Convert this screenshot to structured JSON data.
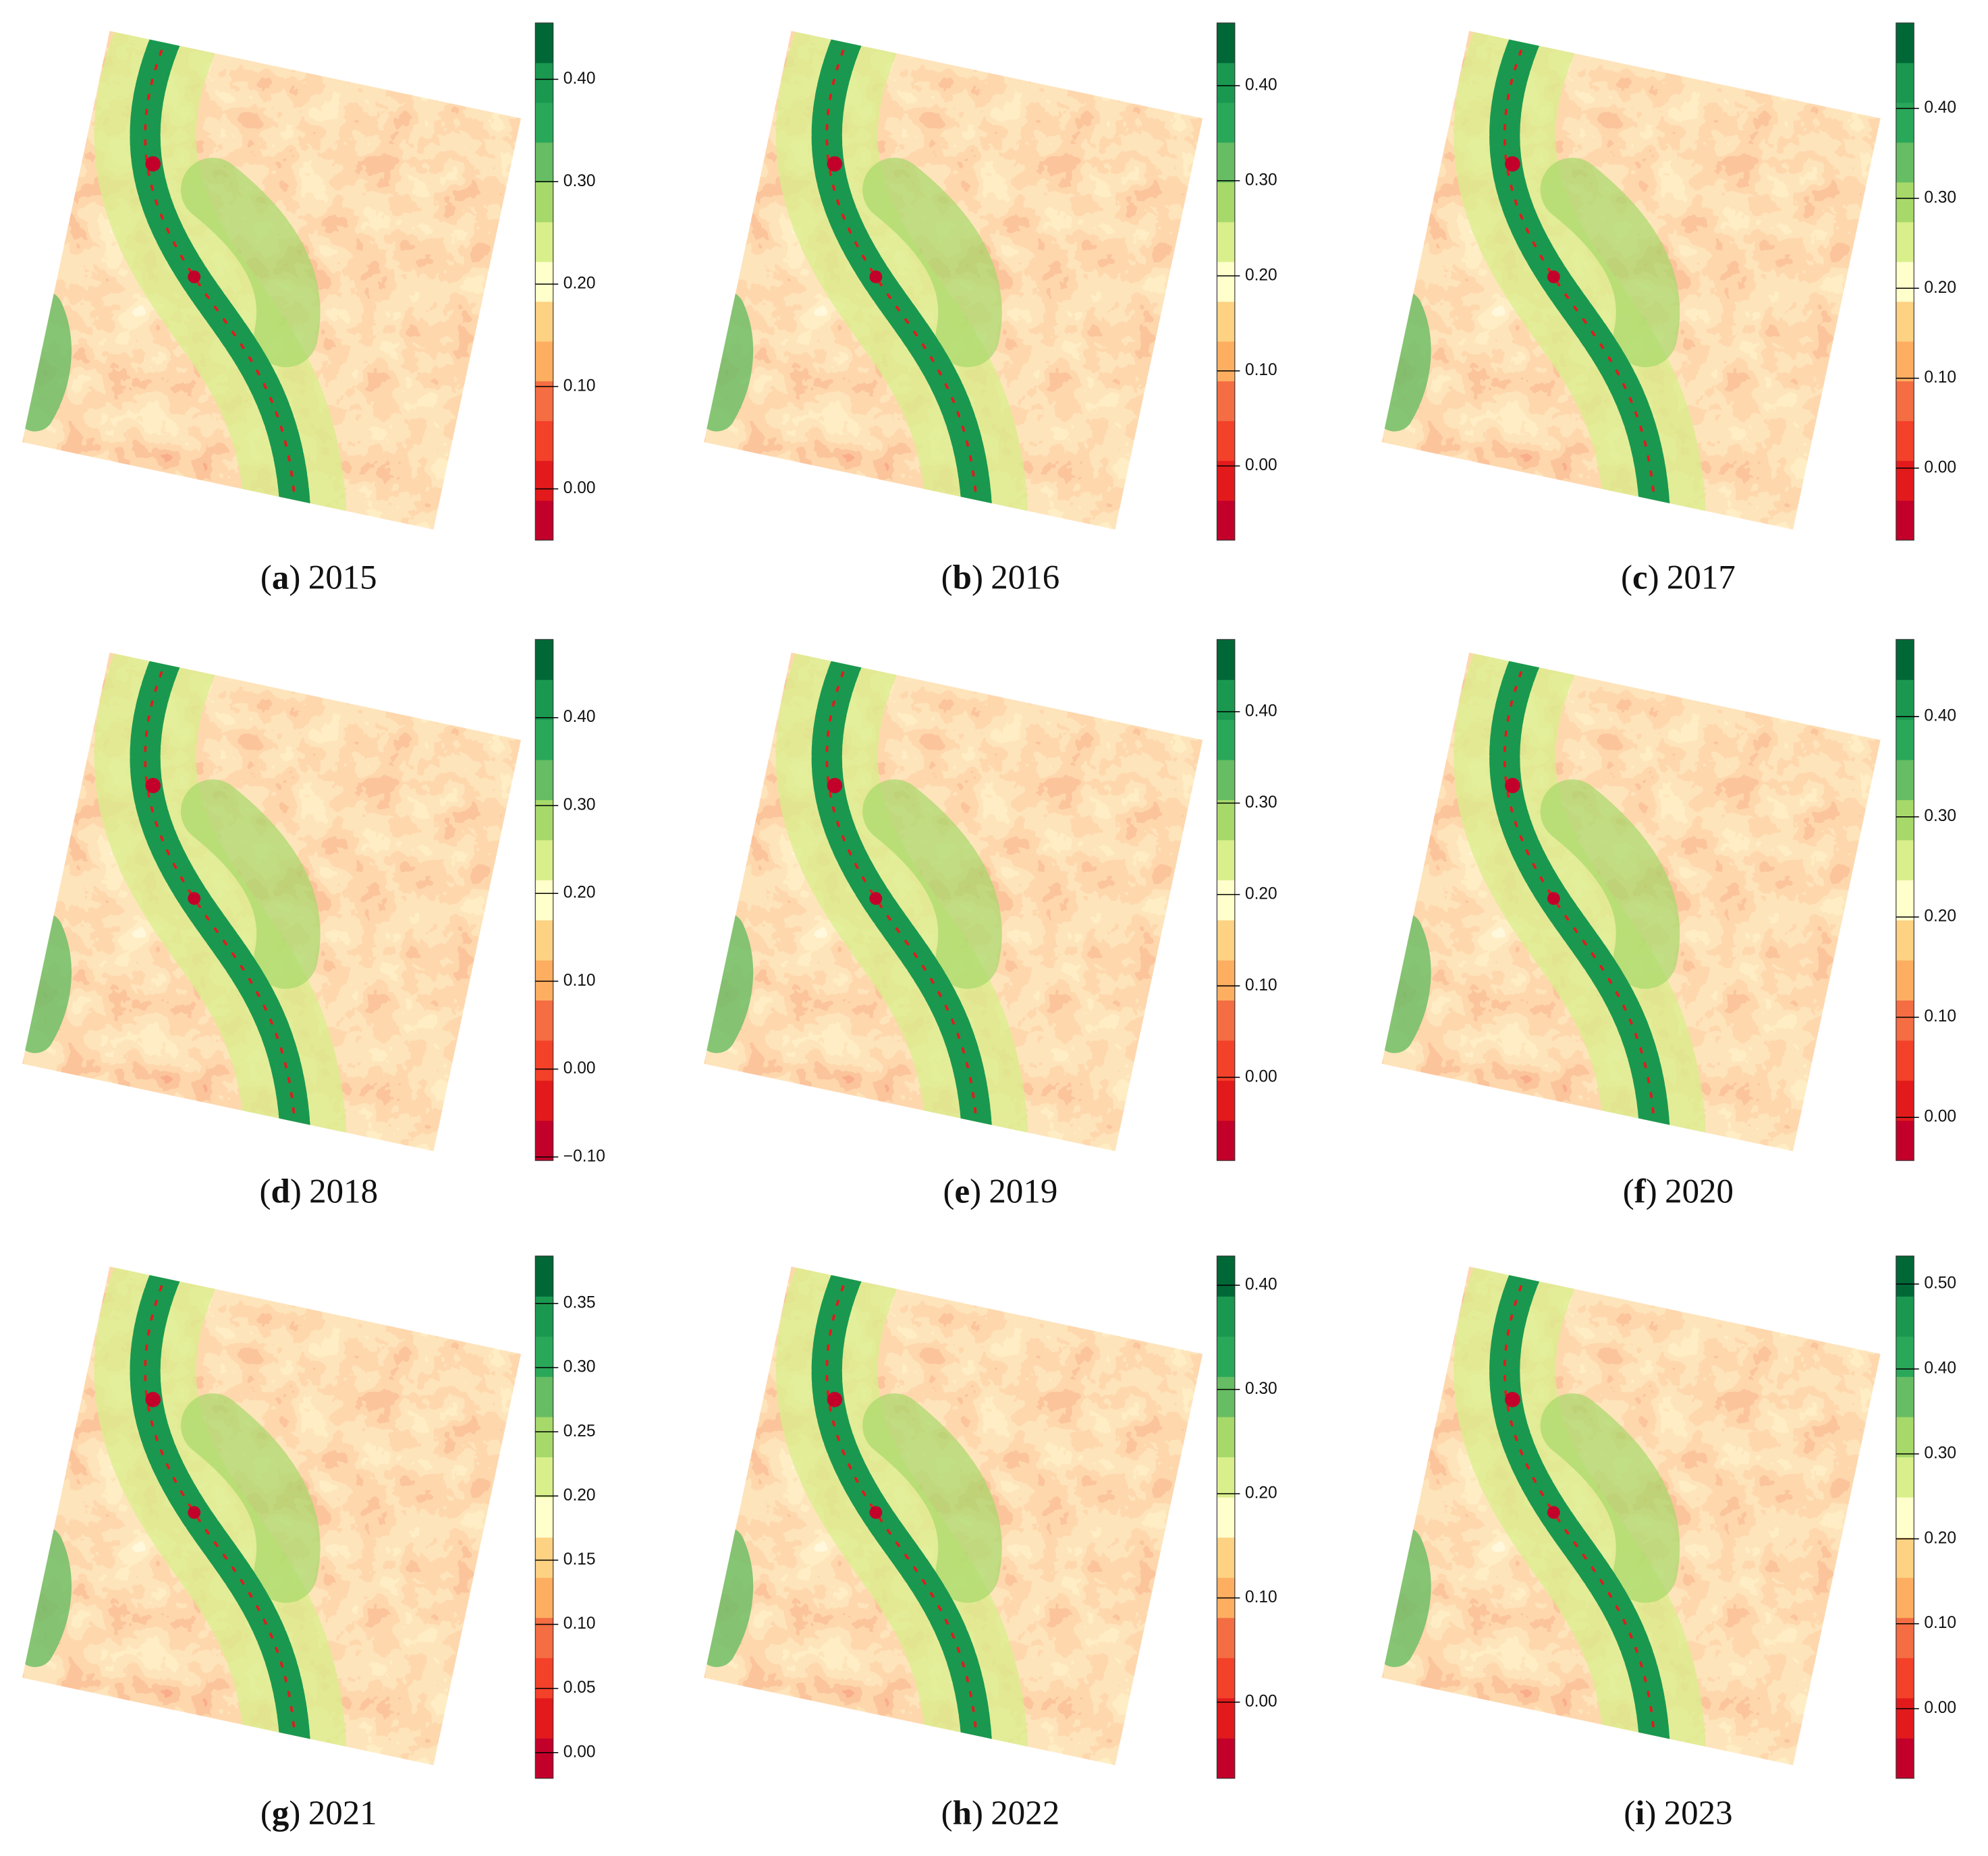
{
  "colormap": [
    "#c2002a",
    "#e31a1c",
    "#f4412a",
    "#f46d43",
    "#fdae61",
    "#fed283",
    "#ffffcc",
    "#d9ef8b",
    "#a6d96a",
    "#66bd63",
    "#2aa85a",
    "#1a9850",
    "#006837"
  ],
  "panels": [
    {
      "caption": {
        "open": "(",
        "letter": "a",
        "close": ")",
        "year": "2015"
      },
      "colorbar": {
        "lim": [
          -0.05,
          0.455
        ],
        "ticks": [
          {
            "value": 0,
            "label": "0.00"
          },
          {
            "value": 0.1,
            "label": "0.10"
          },
          {
            "value": 0.2,
            "label": "0.20"
          },
          {
            "value": 0.3,
            "label": "0.30"
          },
          {
            "value": 0.4,
            "label": "0.40"
          }
        ]
      }
    },
    {
      "caption": {
        "open": "(",
        "letter": "b",
        "close": ")",
        "year": "2016"
      },
      "colorbar": {
        "lim": [
          -0.078,
          0.466
        ],
        "ticks": [
          {
            "value": 0,
            "label": "0.00"
          },
          {
            "value": 0.1,
            "label": "0.10"
          },
          {
            "value": 0.2,
            "label": "0.20"
          },
          {
            "value": 0.3,
            "label": "0.30"
          },
          {
            "value": 0.4,
            "label": "0.40"
          }
        ]
      }
    },
    {
      "caption": {
        "open": "(",
        "letter": "c",
        "close": ")",
        "year": "2017"
      },
      "colorbar": {
        "lim": [
          -0.08,
          0.495
        ],
        "ticks": [
          {
            "value": 0,
            "label": "0.00"
          },
          {
            "value": 0.1,
            "label": "0.10"
          },
          {
            "value": 0.2,
            "label": "0.20"
          },
          {
            "value": 0.3,
            "label": "0.30"
          },
          {
            "value": 0.4,
            "label": "0.40"
          }
        ]
      }
    },
    {
      "caption": {
        "open": "(",
        "letter": "d",
        "close": ")",
        "year": "2018"
      },
      "colorbar": {
        "lim": [
          -0.104,
          0.489
        ],
        "ticks": [
          {
            "value": -0.1,
            "label": "−0.10"
          },
          {
            "value": 0,
            "label": "0.00"
          },
          {
            "value": 0.1,
            "label": "0.10"
          },
          {
            "value": 0.2,
            "label": "0.20"
          },
          {
            "value": 0.3,
            "label": "0.30"
          },
          {
            "value": 0.4,
            "label": "0.40"
          }
        ]
      }
    },
    {
      "caption": {
        "open": "(",
        "letter": "e",
        "close": ")",
        "year": "2019"
      },
      "colorbar": {
        "lim": [
          -0.091,
          0.479
        ],
        "ticks": [
          {
            "value": 0,
            "label": "0.00"
          },
          {
            "value": 0.1,
            "label": "0.10"
          },
          {
            "value": 0.2,
            "label": "0.20"
          },
          {
            "value": 0.3,
            "label": "0.30"
          },
          {
            "value": 0.4,
            "label": "0.40"
          }
        ]
      }
    },
    {
      "caption": {
        "open": "(",
        "letter": "f",
        "close": ")",
        "year": "2020"
      },
      "colorbar": {
        "lim": [
          -0.043,
          0.477
        ],
        "ticks": [
          {
            "value": 0,
            "label": "0.00"
          },
          {
            "value": 0.1,
            "label": "0.10"
          },
          {
            "value": 0.2,
            "label": "0.20"
          },
          {
            "value": 0.3,
            "label": "0.30"
          },
          {
            "value": 0.4,
            "label": "0.40"
          }
        ]
      }
    },
    {
      "caption": {
        "open": "(",
        "letter": "g",
        "close": ")",
        "year": "2021"
      },
      "colorbar": {
        "lim": [
          -0.02,
          0.387
        ],
        "ticks": [
          {
            "value": 0,
            "label": "0.00"
          },
          {
            "value": 0.05,
            "label": "0.05"
          },
          {
            "value": 0.1,
            "label": "0.10"
          },
          {
            "value": 0.15,
            "label": "0.15"
          },
          {
            "value": 0.2,
            "label": "0.20"
          },
          {
            "value": 0.25,
            "label": "0.25"
          },
          {
            "value": 0.3,
            "label": "0.30"
          },
          {
            "value": 0.35,
            "label": "0.35"
          }
        ]
      }
    },
    {
      "caption": {
        "open": "(",
        "letter": "h",
        "close": ")",
        "year": "2022"
      },
      "colorbar": {
        "lim": [
          -0.073,
          0.428
        ],
        "ticks": [
          {
            "value": 0,
            "label": "0.00"
          },
          {
            "value": 0.1,
            "label": "0.10"
          },
          {
            "value": 0.2,
            "label": "0.20"
          },
          {
            "value": 0.3,
            "label": "0.30"
          },
          {
            "value": 0.4,
            "label": "0.40"
          }
        ]
      }
    },
    {
      "caption": {
        "open": "(",
        "letter": "i",
        "close": ")",
        "year": "2023"
      },
      "colorbar": {
        "lim": [
          -0.082,
          0.533
        ],
        "ticks": [
          {
            "value": 0,
            "label": "0.00"
          },
          {
            "value": 0.1,
            "label": "0.10"
          },
          {
            "value": 0.2,
            "label": "0.20"
          },
          {
            "value": 0.3,
            "label": "0.30"
          },
          {
            "value": 0.4,
            "label": "0.40"
          },
          {
            "value": 0.5,
            "label": "0.50"
          }
        ]
      }
    }
  ]
}
